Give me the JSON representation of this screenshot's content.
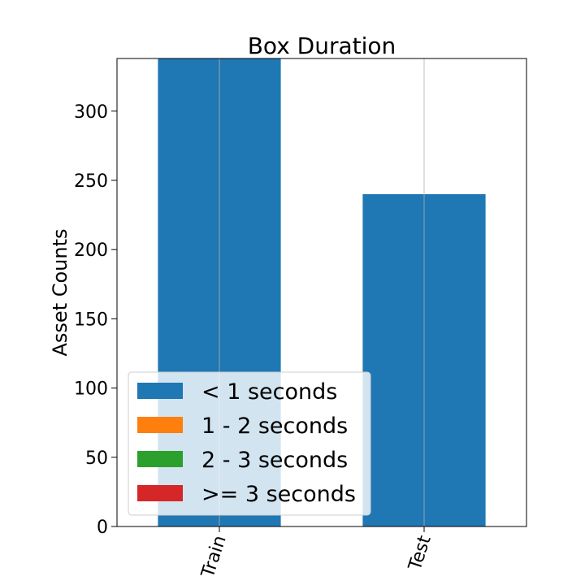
{
  "chart_data": {
    "type": "bar",
    "stacked": true,
    "title": "Box Duration",
    "xlabel": "",
    "ylabel": "Asset Counts",
    "categories": [
      "Train",
      "Test"
    ],
    "series": [
      {
        "name": "< 1 seconds",
        "color": "#1f77b4",
        "values": [
          340,
          240
        ]
      },
      {
        "name": "1 - 2 seconds",
        "color": "#ff7f0e",
        "values": [
          0,
          0
        ]
      },
      {
        "name": "2 - 3 seconds",
        "color": "#2ca02c",
        "values": [
          0,
          0
        ]
      },
      {
        "name": ">= 3 seconds",
        "color": "#d62728",
        "values": [
          0,
          0
        ]
      }
    ],
    "ylim": [
      0,
      338
    ],
    "yticks": [
      "0",
      "50",
      "100",
      "150",
      "200",
      "250",
      "300"
    ],
    "x_grid": true,
    "y_grid": false,
    "legend_placement": "lower-left",
    "x_tick_rotation": "diagonal"
  }
}
